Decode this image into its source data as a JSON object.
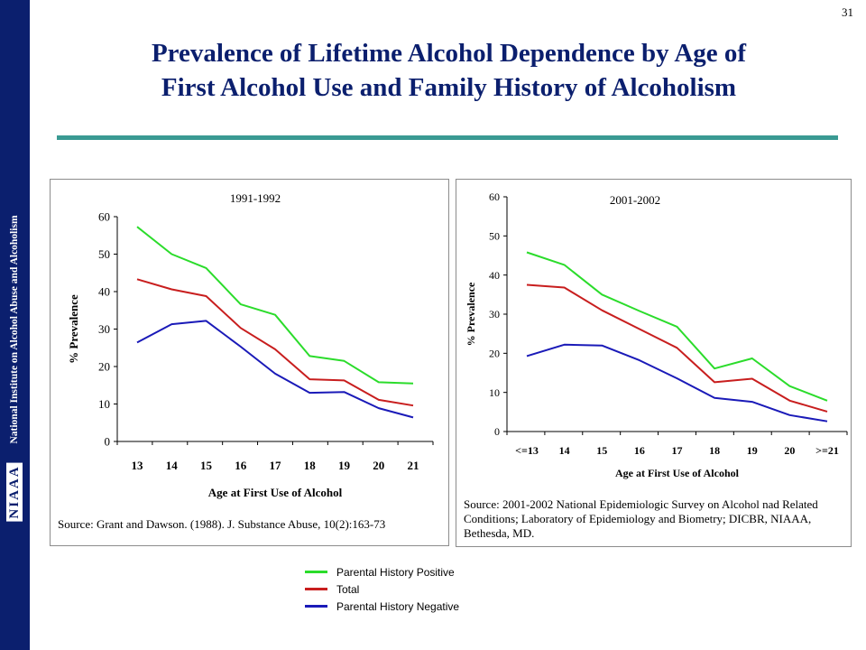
{
  "slide": {
    "number": "31",
    "title_line1": "Prevalence of Lifetime Alcohol Dependence by Age of",
    "title_line2": "First Alcohol Use and Family History of Alcoholism",
    "sidebar_text": "National Institute on Alcohol Abuse and Alcoholism",
    "sidebar_logo": "NIAAA"
  },
  "colors": {
    "sidebar": "#0b1f6e",
    "title": "#0b1f6e",
    "rule": "#3a9a93",
    "positive": "#2bdc2b",
    "total": "#c81e1e",
    "negative": "#1a1ab8"
  },
  "legend": [
    {
      "label": "Parental History Positive",
      "color": "#2bdc2b"
    },
    {
      "label": "Total",
      "color": "#c81e1e"
    },
    {
      "label": "Parental History Negative",
      "color": "#1a1ab8"
    }
  ],
  "chart_data": [
    {
      "type": "line",
      "title": "1991-1992",
      "xlabel": "Age at First Use of Alcohol",
      "ylabel": "% Prevalence",
      "categories": [
        "13",
        "14",
        "15",
        "16",
        "17",
        "18",
        "19",
        "20",
        "21"
      ],
      "ylim": [
        0,
        60
      ],
      "yticks": [
        "0",
        "10",
        "20",
        "30",
        "40",
        "50",
        "60"
      ],
      "grid": false,
      "source": "Source: Grant and Dawson. (1988). J. Substance Abuse, 10(2):163-73",
      "series": [
        {
          "name": "Parental History Positive",
          "color": "#2bdc2b",
          "values": [
            57.3,
            50.0,
            46.3,
            36.6,
            33.8,
            22.8,
            21.5,
            15.8,
            15.5
          ]
        },
        {
          "name": "Total",
          "color": "#c81e1e",
          "values": [
            43.3,
            40.6,
            38.8,
            30.3,
            24.6,
            16.6,
            16.3,
            11.1,
            9.6
          ]
        },
        {
          "name": "Parental History Negative",
          "color": "#1a1ab8",
          "values": [
            26.4,
            31.3,
            32.2,
            25.3,
            18.1,
            13.0,
            13.2,
            8.9,
            6.4
          ]
        }
      ]
    },
    {
      "type": "line",
      "title": "2001-2002",
      "xlabel": "Age at First Use of Alcohol",
      "ylabel": "% Prevalence",
      "categories": [
        "<=13",
        "14",
        "15",
        "16",
        "17",
        "18",
        "19",
        "20",
        ">=21"
      ],
      "ylim": [
        0,
        60
      ],
      "yticks": [
        "0",
        "10",
        "20",
        "30",
        "40",
        "50",
        "60"
      ],
      "grid": false,
      "source": "Source: 2001-2002 National Epidemiologic Survey on Alcohol nad Related Conditions; Laboratory of Epidemiology and Biometry; DICBR, NIAAA, Bethesda, MD.",
      "series": [
        {
          "name": "Parental History Positive",
          "color": "#2bdc2b",
          "values": [
            45.8,
            42.6,
            35.0,
            30.8,
            26.8,
            16.1,
            18.7,
            11.6,
            7.9
          ]
        },
        {
          "name": "Total",
          "color": "#c81e1e",
          "values": [
            37.5,
            36.8,
            31.0,
            26.2,
            21.4,
            12.6,
            13.5,
            7.9,
            5.1
          ]
        },
        {
          "name": "Parental History Negative",
          "color": "#1a1ab8",
          "values": [
            19.3,
            22.2,
            22.0,
            18.2,
            13.6,
            8.6,
            7.6,
            4.2,
            2.6
          ]
        }
      ]
    }
  ]
}
